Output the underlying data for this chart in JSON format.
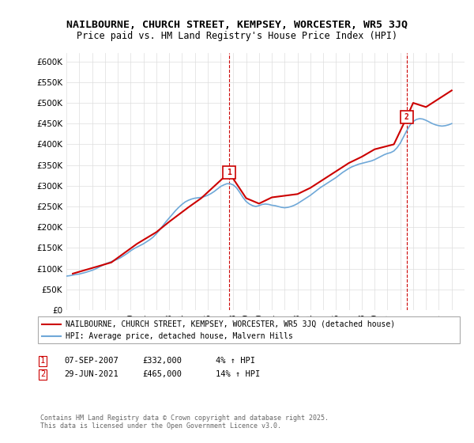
{
  "title": "NAILBOURNE, CHURCH STREET, KEMPSEY, WORCESTER, WR5 3JQ",
  "subtitle": "Price paid vs. HM Land Registry's House Price Index (HPI)",
  "legend_line1": "NAILBOURNE, CHURCH STREET, KEMPSEY, WORCESTER, WR5 3JQ (detached house)",
  "legend_line2": "HPI: Average price, detached house, Malvern Hills",
  "annotation1_label": "1",
  "annotation1_date": "07-SEP-2007",
  "annotation1_price": "£332,000",
  "annotation1_hpi": "4% ↑ HPI",
  "annotation2_label": "2",
  "annotation2_date": "29-JUN-2021",
  "annotation2_price": "£465,000",
  "annotation2_hpi": "14% ↑ HPI",
  "footer": "Contains HM Land Registry data © Crown copyright and database right 2025.\nThis data is licensed under the Open Government Licence v3.0.",
  "hpi_color": "#6fa8d8",
  "price_color": "#cc0000",
  "annotation_color": "#cc0000",
  "ylim": [
    0,
    620000
  ],
  "ytick_step": 50000,
  "xmin": 1995.0,
  "xmax": 2026.0,
  "hpi_x": [
    1995.0,
    1995.25,
    1995.5,
    1995.75,
    1996.0,
    1996.25,
    1996.5,
    1996.75,
    1997.0,
    1997.25,
    1997.5,
    1997.75,
    1998.0,
    1998.25,
    1998.5,
    1998.75,
    1999.0,
    1999.25,
    1999.5,
    1999.75,
    2000.0,
    2000.25,
    2000.5,
    2000.75,
    2001.0,
    2001.25,
    2001.5,
    2001.75,
    2002.0,
    2002.25,
    2002.5,
    2002.75,
    2003.0,
    2003.25,
    2003.5,
    2003.75,
    2004.0,
    2004.25,
    2004.5,
    2004.75,
    2005.0,
    2005.25,
    2005.5,
    2005.75,
    2006.0,
    2006.25,
    2006.5,
    2006.75,
    2007.0,
    2007.25,
    2007.5,
    2007.75,
    2008.0,
    2008.25,
    2008.5,
    2008.75,
    2009.0,
    2009.25,
    2009.5,
    2009.75,
    2010.0,
    2010.25,
    2010.5,
    2010.75,
    2011.0,
    2011.25,
    2011.5,
    2011.75,
    2012.0,
    2012.25,
    2012.5,
    2012.75,
    2013.0,
    2013.25,
    2013.5,
    2013.75,
    2014.0,
    2014.25,
    2014.5,
    2014.75,
    2015.0,
    2015.25,
    2015.5,
    2015.75,
    2016.0,
    2016.25,
    2016.5,
    2016.75,
    2017.0,
    2017.25,
    2017.5,
    2017.75,
    2018.0,
    2018.25,
    2018.5,
    2018.75,
    2019.0,
    2019.25,
    2019.5,
    2019.75,
    2020.0,
    2020.25,
    2020.5,
    2020.75,
    2021.0,
    2021.25,
    2021.5,
    2021.75,
    2022.0,
    2022.25,
    2022.5,
    2022.75,
    2023.0,
    2023.25,
    2023.5,
    2023.75,
    2024.0,
    2024.25,
    2024.5,
    2024.75,
    2025.0
  ],
  "hpi_y": [
    82000,
    83000,
    84500,
    86000,
    87000,
    89000,
    91000,
    93500,
    96000,
    99000,
    103000,
    107000,
    111000,
    114000,
    117000,
    120000,
    123000,
    127000,
    132000,
    137000,
    143000,
    148000,
    152000,
    156000,
    160000,
    165000,
    170000,
    176000,
    184000,
    193000,
    203000,
    213000,
    222000,
    231000,
    240000,
    248000,
    255000,
    261000,
    265000,
    268000,
    270000,
    271000,
    272000,
    274000,
    277000,
    281000,
    286000,
    292000,
    298000,
    302000,
    305000,
    305000,
    302000,
    295000,
    284000,
    272000,
    262000,
    256000,
    252000,
    250000,
    252000,
    255000,
    256000,
    255000,
    253000,
    252000,
    250000,
    248000,
    247000,
    248000,
    250000,
    253000,
    257000,
    262000,
    267000,
    272000,
    277000,
    283000,
    289000,
    295000,
    300000,
    305000,
    310000,
    315000,
    320000,
    326000,
    332000,
    337000,
    342000,
    346000,
    349000,
    352000,
    354000,
    356000,
    358000,
    360000,
    363000,
    367000,
    371000,
    375000,
    378000,
    380000,
    384000,
    392000,
    403000,
    418000,
    433000,
    446000,
    455000,
    460000,
    462000,
    461000,
    458000,
    454000,
    450000,
    447000,
    445000,
    444000,
    445000,
    447000,
    450000
  ],
  "price_x": [
    1995.5,
    1998.5,
    2000.5,
    2002.0,
    2003.0,
    2004.5,
    2005.5,
    2007.67,
    2009.0,
    2010.0,
    2011.0,
    2013.0,
    2014.0,
    2015.0,
    2016.0,
    2017.0,
    2018.0,
    2019.0,
    2020.5,
    2021.5,
    2022.0,
    2023.0,
    2024.0,
    2025.0
  ],
  "price_y": [
    88000,
    115000,
    160000,
    188000,
    213000,
    248000,
    270000,
    332000,
    270000,
    257000,
    272000,
    280000,
    295000,
    315000,
    335000,
    355000,
    370000,
    388000,
    400000,
    465000,
    500000,
    490000,
    510000,
    530000
  ],
  "ann1_x": 2007.67,
  "ann1_y": 332000,
  "ann2_x": 2021.5,
  "ann2_y": 465000,
  "ann1_vline_x": 2007.67,
  "ann2_vline_x": 2021.5,
  "bg_color": "#f8f8f8"
}
